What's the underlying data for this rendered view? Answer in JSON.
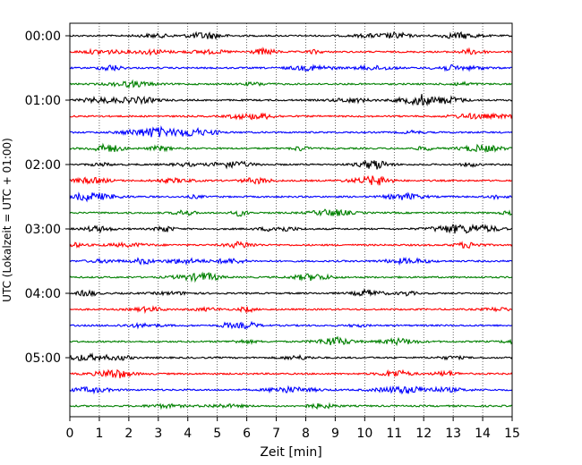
{
  "chart_data": {
    "type": "line",
    "title": "",
    "xlabel": "Zeit  [min]",
    "ylabel": "UTC (Lokalzeit = UTC + 01:00)",
    "xlim": [
      0,
      15
    ],
    "x_ticks": [
      "0",
      "1",
      "2",
      "3",
      "4",
      "5",
      "6",
      "7",
      "8",
      "9",
      "10",
      "11",
      "12",
      "13",
      "14",
      "15"
    ],
    "y_ticks": [
      "00:00",
      "01:00",
      "02:00",
      "03:00",
      "04:00",
      "05:00"
    ],
    "grid": "vertical-dotted",
    "trace_colors": [
      "#000000",
      "#ff0000",
      "#0000ff",
      "#008000"
    ],
    "traces": [
      {
        "start": "00:00"
      },
      {
        "start": "00:15"
      },
      {
        "start": "00:30"
      },
      {
        "start": "00:45"
      },
      {
        "start": "01:00"
      },
      {
        "start": "01:15"
      },
      {
        "start": "01:30"
      },
      {
        "start": "01:45"
      },
      {
        "start": "02:00"
      },
      {
        "start": "02:15"
      },
      {
        "start": "02:30"
      },
      {
        "start": "02:45"
      },
      {
        "start": "03:00"
      },
      {
        "start": "03:15"
      },
      {
        "start": "03:30"
      },
      {
        "start": "03:45"
      },
      {
        "start": "04:00"
      },
      {
        "start": "04:15"
      },
      {
        "start": "04:30"
      },
      {
        "start": "04:45"
      },
      {
        "start": "05:00"
      },
      {
        "start": "05:15"
      },
      {
        "start": "05:30"
      },
      {
        "start": "05:45"
      }
    ]
  }
}
